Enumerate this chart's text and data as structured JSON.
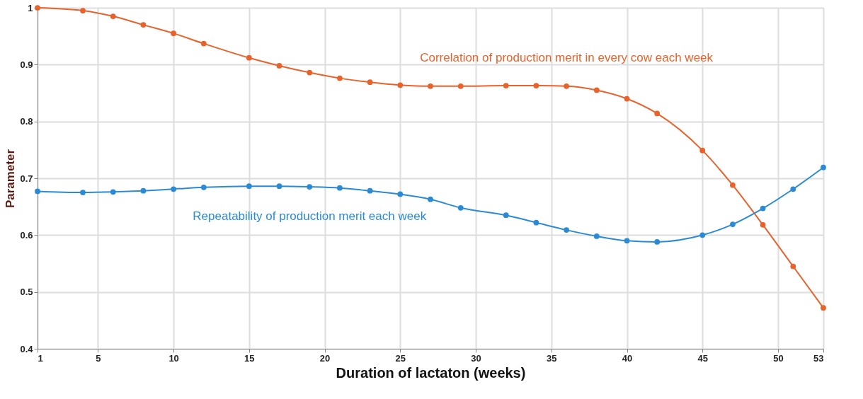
{
  "chart_data": {
    "type": "line",
    "xlabel": "Duration of lactaton  (weeks)",
    "ylabel": "Parameter",
    "x": [
      1,
      4,
      6,
      8,
      10,
      12,
      15,
      17,
      19,
      21,
      23,
      25,
      27,
      29,
      32,
      34,
      36,
      38,
      40,
      42,
      45,
      47,
      49,
      51,
      53
    ],
    "series": [
      {
        "name": "Correlation of production merit in every cow each week",
        "color": "#e8622c",
        "values": [
          1.0,
          0.995,
          0.985,
          0.97,
          0.955,
          0.937,
          0.912,
          0.898,
          0.886,
          0.876,
          0.869,
          0.864,
          0.862,
          0.862,
          0.863,
          0.863,
          0.862,
          0.855,
          0.84,
          0.814,
          0.749,
          0.688,
          0.618,
          0.545,
          0.472
        ]
      },
      {
        "name": "Repeatability of production merit each week",
        "color": "#2b8ad6",
        "values": [
          0.677,
          0.675,
          0.676,
          0.678,
          0.681,
          0.684,
          0.686,
          0.686,
          0.685,
          0.683,
          0.678,
          0.672,
          0.663,
          0.648,
          0.635,
          0.622,
          0.609,
          0.598,
          0.59,
          0.588,
          0.6,
          0.619,
          0.647,
          0.681,
          0.719
        ]
      }
    ],
    "xlim": [
      1,
      53
    ],
    "xticks": [
      1,
      5,
      10,
      15,
      20,
      25,
      30,
      35,
      40,
      45,
      50,
      53
    ],
    "ylim": [
      0.4,
      1
    ],
    "yticks": [
      0.4,
      0.5,
      0.6,
      0.7,
      0.8,
      0.9,
      1
    ],
    "grid": true,
    "marker": "circle",
    "line_style": "solid",
    "legend": false
  }
}
